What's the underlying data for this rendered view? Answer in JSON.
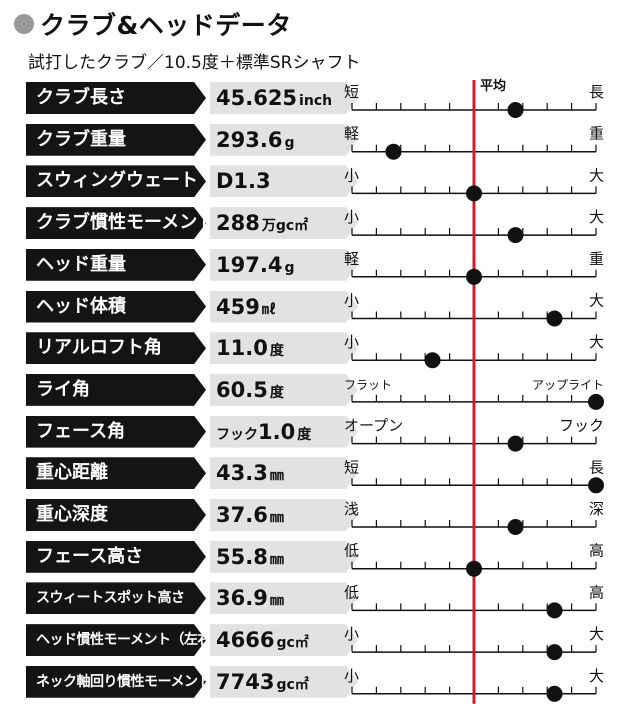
{
  "header": {
    "title": "クラブ&ヘッドデータ",
    "subtitle": "試打したクラブ／10.5度＋標準SRシャフト"
  },
  "average_label": "平均",
  "colors": {
    "average_line": "#cc1f2d",
    "marker": "#111111",
    "label_bg": "#141414",
    "value_bg": "#e2e2e2"
  },
  "chart_data": {
    "type": "scatter",
    "scale": {
      "min": 0,
      "max": 1,
      "average": 0.5,
      "ticks": 11
    },
    "rows": [
      {
        "label": "クラブ長さ",
        "prefix": "",
        "value": "45.625",
        "unit": "inch",
        "left": "短",
        "right": "長",
        "position": 0.67
      },
      {
        "label": "クラブ重量",
        "prefix": "",
        "value": "293.6",
        "unit": "g",
        "left": "軽",
        "right": "重",
        "position": 0.17
      },
      {
        "label": "スウィングウェート",
        "prefix": "",
        "value": "D1.3",
        "unit": "",
        "left": "小",
        "right": "大",
        "position": 0.5
      },
      {
        "label": "クラブ慣性モーメント",
        "prefix": "",
        "value": "288",
        "unit": "万gc㎡",
        "left": "小",
        "right": "大",
        "position": 0.67
      },
      {
        "label": "ヘッド重量",
        "prefix": "",
        "value": "197.4",
        "unit": "g",
        "left": "軽",
        "right": "重",
        "position": 0.5
      },
      {
        "label": "ヘッド体積",
        "prefix": "",
        "value": "459",
        "unit": "㎖",
        "left": "小",
        "right": "大",
        "position": 0.83
      },
      {
        "label": "リアルロフト角",
        "prefix": "",
        "value": "11.0",
        "unit": "度",
        "left": "小",
        "right": "大",
        "position": 0.33
      },
      {
        "label": "ライ角",
        "prefix": "",
        "value": "60.5",
        "unit": "度",
        "left": "フラット",
        "right": "アップライト",
        "position": 1.0
      },
      {
        "label": "フェース角",
        "prefix": "フック",
        "value": "1.0",
        "unit": "度",
        "left": "オープン",
        "right": "フック",
        "position": 0.67
      },
      {
        "label": "重心距離",
        "prefix": "",
        "value": "43.3",
        "unit": "㎜",
        "left": "短",
        "right": "長",
        "position": 1.0
      },
      {
        "label": "重心深度",
        "prefix": "",
        "value": "37.6",
        "unit": "㎜",
        "left": "浅",
        "right": "深",
        "position": 0.67
      },
      {
        "label": "フェース高さ",
        "prefix": "",
        "value": "55.8",
        "unit": "㎜",
        "left": "低",
        "right": "高",
        "position": 0.5
      },
      {
        "label": "スウィートスポット高さ",
        "prefix": "",
        "value": "36.9",
        "unit": "㎜",
        "left": "低",
        "right": "高",
        "position": 0.83
      },
      {
        "label": "ヘッド慣性モーメント（左右方向）",
        "prefix": "",
        "value": "4666",
        "unit": "gc㎡",
        "left": "小",
        "right": "大",
        "position": 0.83
      },
      {
        "label": "ネック軸回り慣性モーメント",
        "prefix": "",
        "value": "7743",
        "unit": "gc㎡",
        "left": "小",
        "right": "大",
        "position": 0.83
      }
    ]
  }
}
